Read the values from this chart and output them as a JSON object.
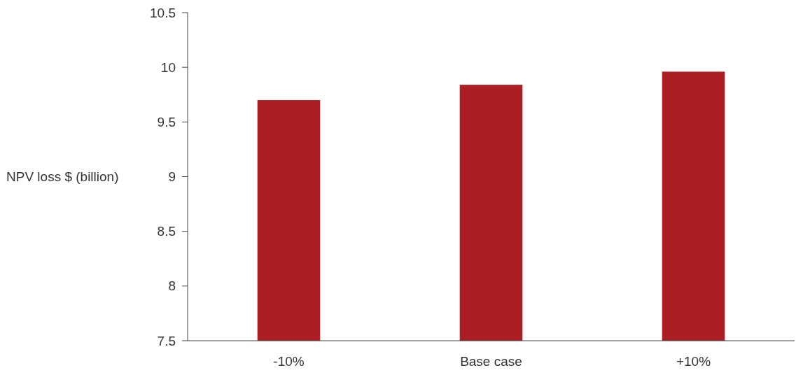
{
  "chart_data": {
    "type": "bar",
    "ylabel": "NPV loss $ (billion)",
    "categories": [
      "-10%",
      "Base case",
      "+10%"
    ],
    "values": [
      9.7,
      9.84,
      9.96
    ],
    "color": "#ab1f24",
    "ylim": [
      7.5,
      10.5
    ],
    "yticks": [
      7.5,
      8,
      8.5,
      9,
      9.5,
      10,
      10.5
    ],
    "grid": false
  }
}
